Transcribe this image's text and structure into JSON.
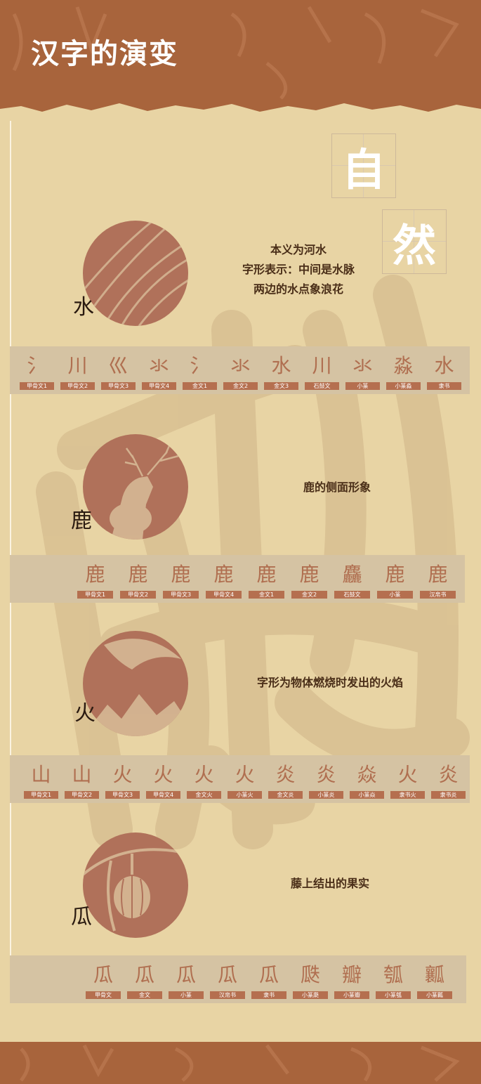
{
  "header": {
    "title": "汉字的演变"
  },
  "theme": {
    "big_chars": [
      "自",
      "然"
    ]
  },
  "colors": {
    "background": "#e8d4a4",
    "header": "#a8643c",
    "accent": "#b06f50",
    "strip": "#d5c3a3",
    "text": "#4a2e18"
  },
  "sections": [
    {
      "char": "水",
      "desc": [
        "本义为河水",
        "字形表示：中间是水脉",
        "两边的水点象浪花"
      ],
      "image_icon": "water-waves-icon",
      "evolution": [
        {
          "glyph": "氵",
          "label": "甲骨文1"
        },
        {
          "glyph": "川",
          "label": "甲骨文2"
        },
        {
          "glyph": "巛",
          "label": "甲骨文3"
        },
        {
          "glyph": "氺",
          "label": "甲骨文4"
        },
        {
          "glyph": "氵",
          "label": "金文1"
        },
        {
          "glyph": "氺",
          "label": "金文2"
        },
        {
          "glyph": "水",
          "label": "金文3"
        },
        {
          "glyph": "川",
          "label": "石鼓文"
        },
        {
          "glyph": "氺",
          "label": "小篆"
        },
        {
          "glyph": "淼",
          "label": "小篆淼"
        },
        {
          "glyph": "水",
          "label": "隶书"
        }
      ]
    },
    {
      "char": "鹿",
      "desc": [
        "鹿的侧面形象"
      ],
      "image_icon": "deer-icon",
      "evolution": [
        {
          "glyph": "鹿",
          "label": "甲骨文1"
        },
        {
          "glyph": "鹿",
          "label": "甲骨文2"
        },
        {
          "glyph": "鹿",
          "label": "甲骨文3"
        },
        {
          "glyph": "鹿",
          "label": "甲骨文4"
        },
        {
          "glyph": "鹿",
          "label": "金文1"
        },
        {
          "glyph": "鹿",
          "label": "金文2"
        },
        {
          "glyph": "麤",
          "label": "石鼓文"
        },
        {
          "glyph": "鹿",
          "label": "小篆"
        },
        {
          "glyph": "鹿",
          "label": "汉帛书"
        }
      ]
    },
    {
      "char": "火",
      "desc": [
        "字形为物体燃烧时发出的火焰"
      ],
      "image_icon": "fire-flame-icon",
      "evolution": [
        {
          "glyph": "山",
          "label": "甲骨文1"
        },
        {
          "glyph": "山",
          "label": "甲骨文2"
        },
        {
          "glyph": "火",
          "label": "甲骨文3"
        },
        {
          "glyph": "火",
          "label": "甲骨文4"
        },
        {
          "glyph": "火",
          "label": "金文火"
        },
        {
          "glyph": "火",
          "label": "小篆火"
        },
        {
          "glyph": "炎",
          "label": "金文炎"
        },
        {
          "glyph": "炎",
          "label": "小篆炎"
        },
        {
          "glyph": "焱",
          "label": "小篆焱"
        },
        {
          "glyph": "火",
          "label": "隶书火"
        },
        {
          "glyph": "炎",
          "label": "隶书炎"
        }
      ]
    },
    {
      "char": "瓜",
      "desc": [
        "藤上结出的果实"
      ],
      "image_icon": "melon-vine-icon",
      "evolution": [
        {
          "glyph": "瓜",
          "label": "甲骨文"
        },
        {
          "glyph": "瓜",
          "label": "金文"
        },
        {
          "glyph": "瓜",
          "label": "小篆"
        },
        {
          "glyph": "瓜",
          "label": "汉帛书"
        },
        {
          "glyph": "瓜",
          "label": "隶书"
        },
        {
          "glyph": "瓞",
          "label": "小篆瓞"
        },
        {
          "glyph": "瓣",
          "label": "小篆瓣"
        },
        {
          "glyph": "瓠",
          "label": "小篆瓠"
        },
        {
          "glyph": "瓤",
          "label": "小篆瓤"
        }
      ]
    }
  ]
}
